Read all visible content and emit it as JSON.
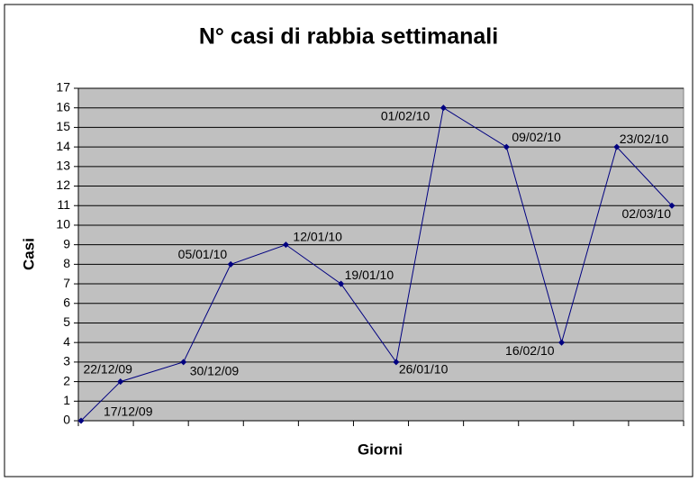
{
  "chart_data": {
    "type": "line",
    "title": "N° casi di rabbia settimanali",
    "x_label": "Giorni",
    "y_label": "Casi",
    "x": [
      "17/12/09",
      "22/12/09",
      "30/12/09",
      "05/01/10",
      "12/01/10",
      "19/01/10",
      "26/01/10",
      "01/02/10",
      "09/02/10",
      "16/02/10",
      "23/02/10",
      "02/03/10"
    ],
    "series": [
      {
        "name": "Casi",
        "color": "#000080",
        "values": [
          0,
          2,
          3,
          8,
          9,
          7,
          3,
          16,
          14,
          4,
          14,
          11
        ]
      }
    ],
    "ylim": [
      0,
      17
    ],
    "yticks": [
      0,
      1,
      2,
      3,
      4,
      5,
      6,
      7,
      8,
      9,
      10,
      11,
      12,
      13,
      14,
      15,
      16,
      17
    ],
    "grid": true,
    "plot_background": "#c0c0c0"
  }
}
